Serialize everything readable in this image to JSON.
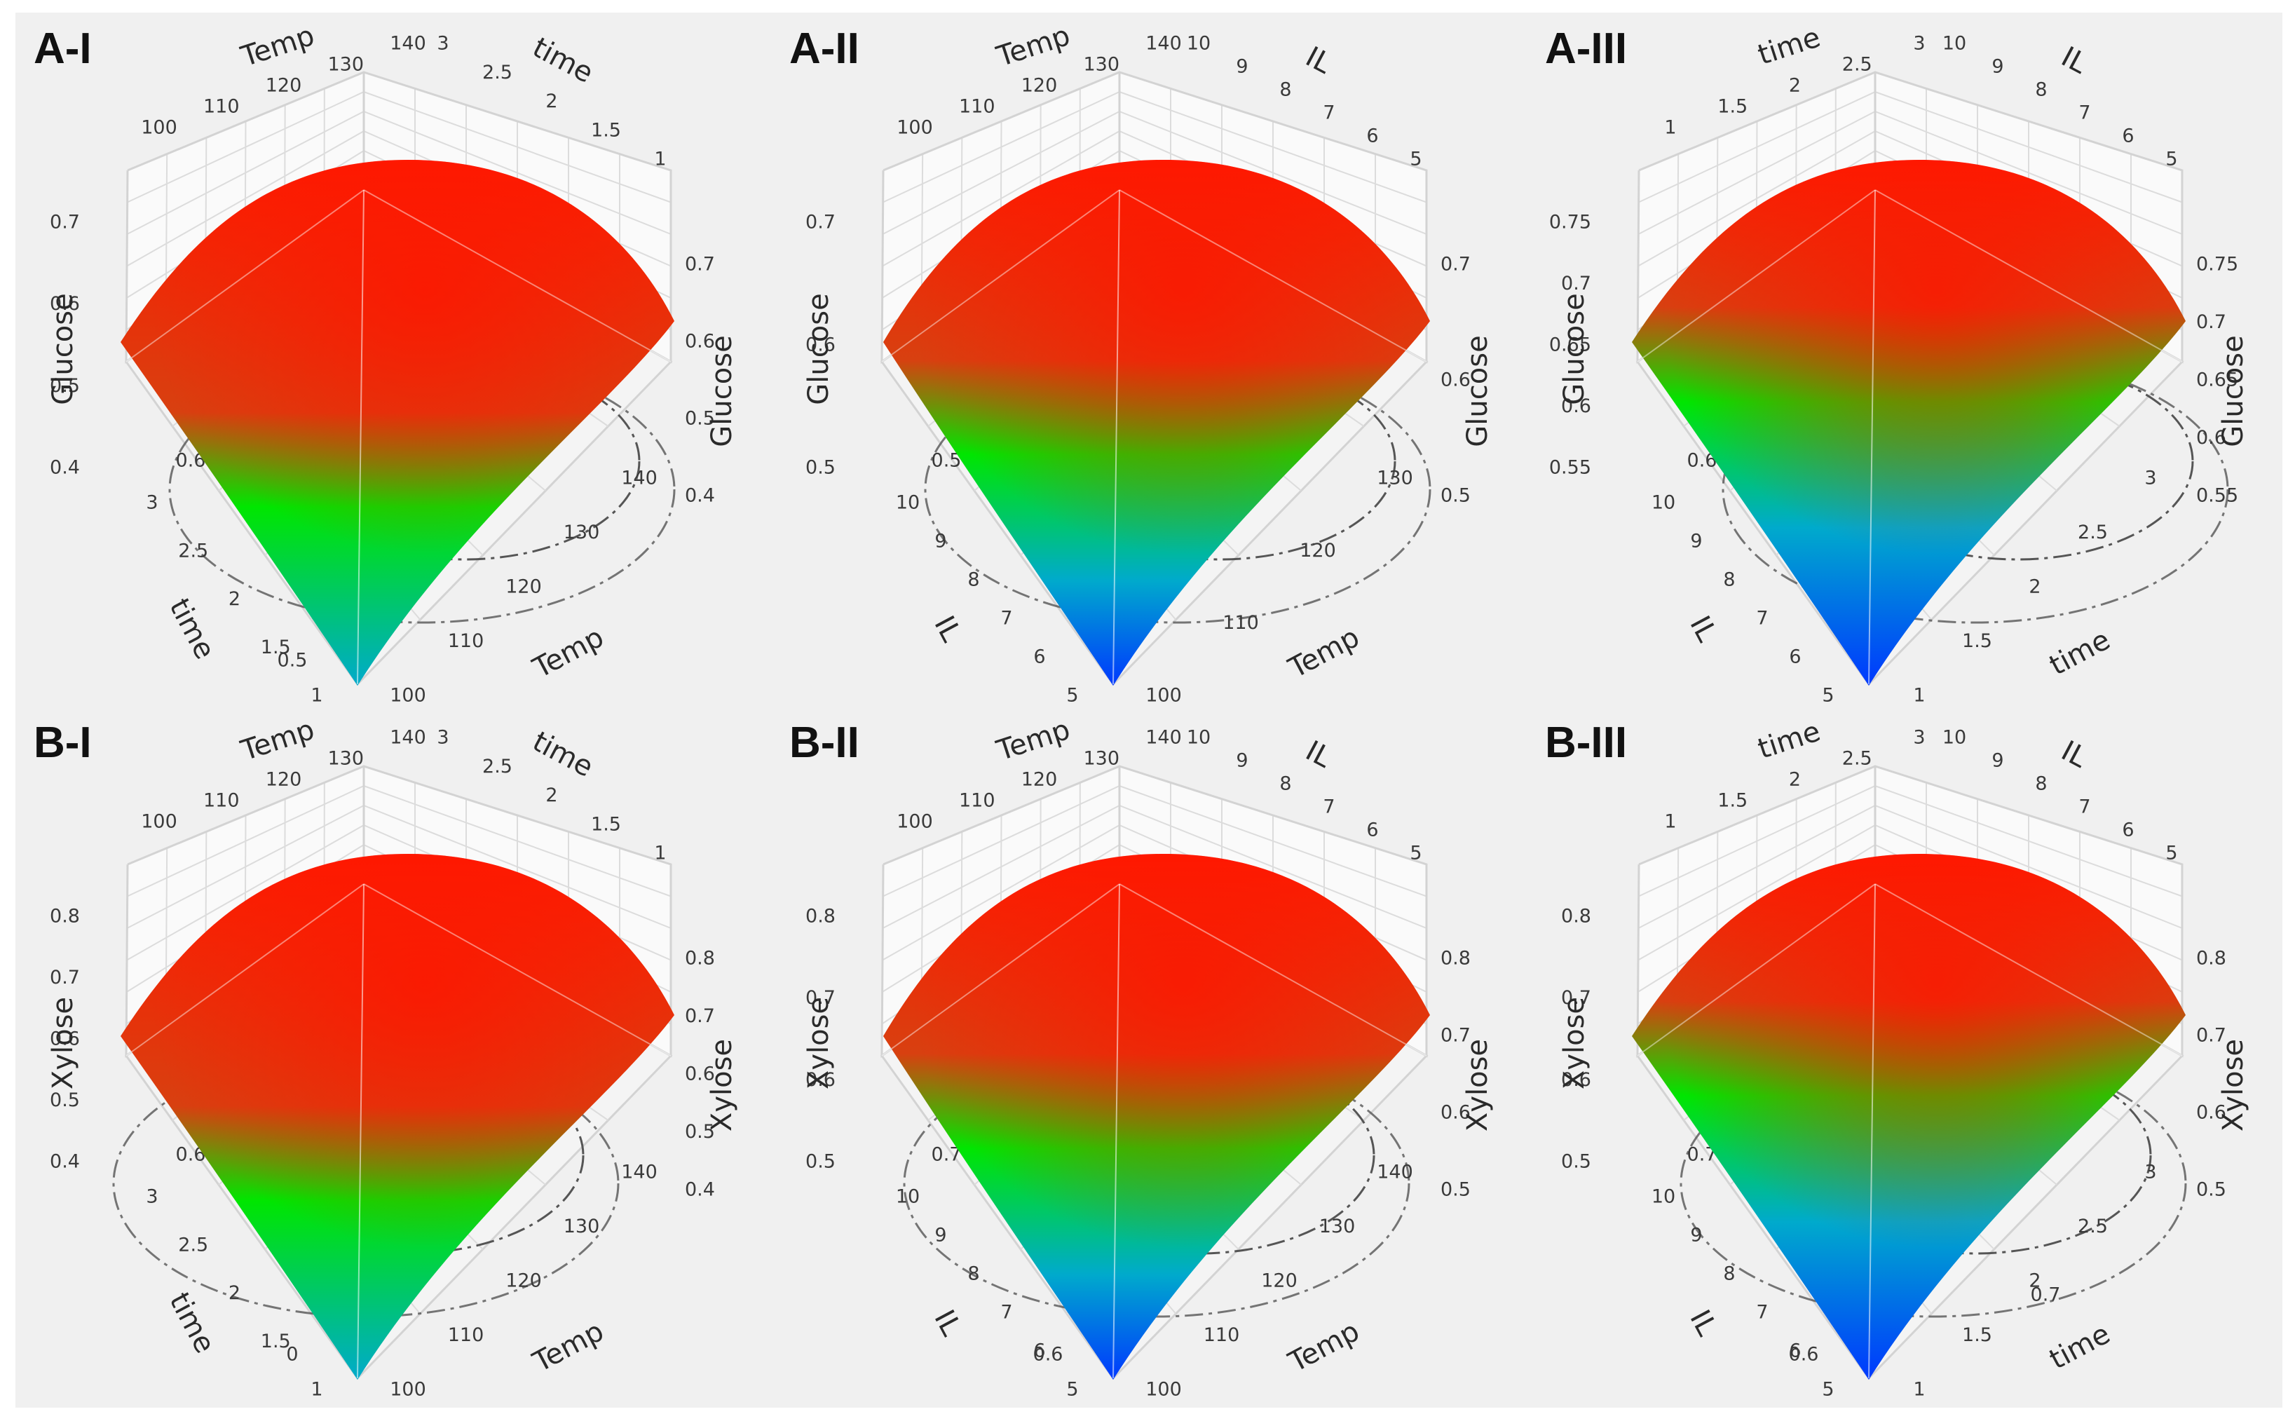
{
  "colors": {
    "high": "#ff1a00",
    "mid": "#00e600",
    "low": "#0038ff",
    "panel_bg": "#f0f0f0"
  },
  "panels": [
    {
      "label": "A-I",
      "z": {
        "name": "Glucose",
        "left_ticks": [
          "0.4",
          "0.5",
          "0.6",
          "0.7"
        ],
        "right_ticks": [
          "0.4",
          "0.5",
          "0.6",
          "0.7"
        ]
      },
      "back_a": {
        "name": "Temp",
        "ticks": [
          "100",
          "110",
          "120",
          "130",
          "140"
        ]
      },
      "back_b": {
        "name": "time",
        "ticks": [
          "3",
          "2.5",
          "2",
          "1.5",
          "1"
        ]
      },
      "front_l": {
        "name": "time",
        "ticks": [
          "3",
          "2.5",
          "2",
          "1.5",
          "1"
        ]
      },
      "front_r": {
        "name": "Temp",
        "ticks": [
          "100",
          "110",
          "120",
          "130",
          "140"
        ]
      },
      "contour_labels": [
        "0.6",
        "0.5"
      ]
    },
    {
      "label": "A-II",
      "z": {
        "name": "Glucose",
        "left_ticks": [
          "0.5",
          "0.6",
          "0.7"
        ],
        "right_ticks": [
          "0.5",
          "0.6",
          "0.7"
        ]
      },
      "back_a": {
        "name": "Temp",
        "ticks": [
          "100",
          "110",
          "120",
          "130",
          "140"
        ]
      },
      "back_b": {
        "name": "IL",
        "ticks": [
          "10",
          "9",
          "8",
          "7",
          "6",
          "5"
        ]
      },
      "front_l": {
        "name": "IL",
        "ticks": [
          "10",
          "9",
          "8",
          "7",
          "6",
          "5"
        ]
      },
      "front_r": {
        "name": "Temp",
        "ticks": [
          "100",
          "110",
          "120",
          "130"
        ]
      },
      "contour_labels": [
        "0.5"
      ]
    },
    {
      "label": "A-III",
      "z": {
        "name": "Glucose",
        "left_ticks": [
          "0.55",
          "0.6",
          "0.65",
          "0.7",
          "0.75"
        ],
        "right_ticks": [
          "0.55",
          "0.6",
          "0.65",
          "0.7",
          "0.75"
        ]
      },
      "back_a": {
        "name": "time",
        "ticks": [
          "1",
          "1.5",
          "2",
          "2.5",
          "3"
        ]
      },
      "back_b": {
        "name": "IL",
        "ticks": [
          "10",
          "9",
          "8",
          "7",
          "6",
          "5"
        ]
      },
      "front_l": {
        "name": "IL",
        "ticks": [
          "10",
          "9",
          "8",
          "7",
          "6",
          "5"
        ]
      },
      "front_r": {
        "name": "time",
        "ticks": [
          "1",
          "1.5",
          "2",
          "2.5",
          "3"
        ]
      },
      "contour_labels": [
        "0.6"
      ]
    },
    {
      "label": "B-I",
      "z": {
        "name": "Xylose",
        "left_ticks": [
          "0.4",
          "0.5",
          "0.6",
          "0.7",
          "0.8"
        ],
        "right_ticks": [
          "0.4",
          "0.5",
          "0.6",
          "0.7",
          "0.8"
        ]
      },
      "back_a": {
        "name": "Temp",
        "ticks": [
          "100",
          "110",
          "120",
          "130",
          "140"
        ]
      },
      "back_b": {
        "name": "time",
        "ticks": [
          "3",
          "2.5",
          "2",
          "1.5",
          "1"
        ]
      },
      "front_l": {
        "name": "time",
        "ticks": [
          "3",
          "2.5",
          "2",
          "1.5",
          "1"
        ]
      },
      "front_r": {
        "name": "Temp",
        "ticks": [
          "100",
          "110",
          "120",
          "130",
          "140"
        ]
      },
      "contour_labels": [
        "0.6",
        "0"
      ]
    },
    {
      "label": "B-II",
      "z": {
        "name": "Xylose",
        "left_ticks": [
          "0.5",
          "0.6",
          "0.7",
          "0.8"
        ],
        "right_ticks": [
          "0.5",
          "0.6",
          "0.7",
          "0.8"
        ]
      },
      "back_a": {
        "name": "Temp",
        "ticks": [
          "100",
          "110",
          "120",
          "130",
          "140"
        ]
      },
      "back_b": {
        "name": "IL",
        "ticks": [
          "10",
          "9",
          "8",
          "7",
          "6",
          "5"
        ]
      },
      "front_l": {
        "name": "IL",
        "ticks": [
          "10",
          "9",
          "8",
          "7",
          "6",
          "5"
        ]
      },
      "front_r": {
        "name": "Temp",
        "ticks": [
          "100",
          "110",
          "120",
          "130",
          "140"
        ]
      },
      "contour_labels": [
        "0.7",
        "0.6"
      ]
    },
    {
      "label": "B-III",
      "z": {
        "name": "Xylose",
        "left_ticks": [
          "0.5",
          "0.6",
          "0.7",
          "0.8"
        ],
        "right_ticks": [
          "0.5",
          "0.6",
          "0.7",
          "0.8"
        ]
      },
      "back_a": {
        "name": "time",
        "ticks": [
          "1",
          "1.5",
          "2",
          "2.5",
          "3"
        ]
      },
      "back_b": {
        "name": "IL",
        "ticks": [
          "10",
          "9",
          "8",
          "7",
          "6",
          "5"
        ]
      },
      "front_l": {
        "name": "IL",
        "ticks": [
          "10",
          "9",
          "8",
          "7",
          "6",
          "5"
        ]
      },
      "front_r": {
        "name": "time",
        "ticks": [
          "1",
          "1.5",
          "2",
          "2.5",
          "3"
        ]
      },
      "contour_labels": [
        "0.7",
        "0.6",
        "0.7"
      ]
    }
  ],
  "chart_data": [
    {
      "type": "surface3d",
      "title": "A-I",
      "x": "Temp",
      "x_range": [
        100,
        140
      ],
      "y": "time",
      "y_range": [
        1,
        3
      ],
      "z": "Glucose",
      "z_range": [
        0.4,
        0.7
      ],
      "z_max_approx": 0.72
    },
    {
      "type": "surface3d",
      "title": "A-II",
      "x": "Temp",
      "x_range": [
        100,
        140
      ],
      "y": "IL",
      "y_range": [
        5,
        10
      ],
      "z": "Glucose",
      "z_range": [
        0.5,
        0.7
      ],
      "z_max_approx": 0.74
    },
    {
      "type": "surface3d",
      "title": "A-III",
      "x": "time",
      "x_range": [
        1,
        3
      ],
      "y": "IL",
      "y_range": [
        5,
        10
      ],
      "z": "Glucose",
      "z_range": [
        0.55,
        0.75
      ],
      "z_max_approx": 0.74
    },
    {
      "type": "surface3d",
      "title": "B-I",
      "x": "Temp",
      "x_range": [
        100,
        140
      ],
      "y": "time",
      "y_range": [
        1,
        3
      ],
      "z": "Xylose",
      "z_range": [
        0.4,
        0.8
      ],
      "z_max_approx": 0.85
    },
    {
      "type": "surface3d",
      "title": "B-II",
      "x": "Temp",
      "x_range": [
        100,
        140
      ],
      "y": "IL",
      "y_range": [
        5,
        10
      ],
      "z": "Xylose",
      "z_range": [
        0.5,
        0.8
      ],
      "z_max_approx": 0.83
    },
    {
      "type": "surface3d",
      "title": "B-III",
      "x": "time",
      "x_range": [
        1,
        3
      ],
      "y": "IL",
      "y_range": [
        5,
        10
      ],
      "z": "Xylose",
      "z_range": [
        0.5,
        0.8
      ],
      "z_max_approx": 0.82
    }
  ]
}
